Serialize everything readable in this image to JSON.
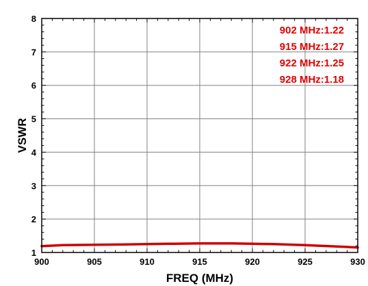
{
  "chart_data": {
    "type": "line",
    "xlabel": "FREQ (MHz)",
    "ylabel": "VSWR",
    "xlim": [
      900,
      930
    ],
    "ylim": [
      1,
      8
    ],
    "x_ticks": [
      900,
      905,
      910,
      915,
      920,
      925,
      930
    ],
    "y_ticks": [
      1,
      2,
      3,
      4,
      5,
      6,
      7,
      8
    ],
    "grid": true,
    "series": [
      {
        "color": "#cc0000",
        "x": [
          900,
          902,
          905,
          908,
          910,
          912,
          915,
          918,
          920,
          922,
          925,
          928,
          930
        ],
        "y": [
          1.19,
          1.22,
          1.23,
          1.24,
          1.25,
          1.26,
          1.27,
          1.27,
          1.26,
          1.25,
          1.22,
          1.18,
          1.15
        ]
      }
    ],
    "annotations": [
      "902 MHz:1.22",
      "915 MHz:1.27",
      "922 MHz:1.25",
      "928 MHz:1.18"
    ],
    "annotation_color": "#e00000"
  }
}
